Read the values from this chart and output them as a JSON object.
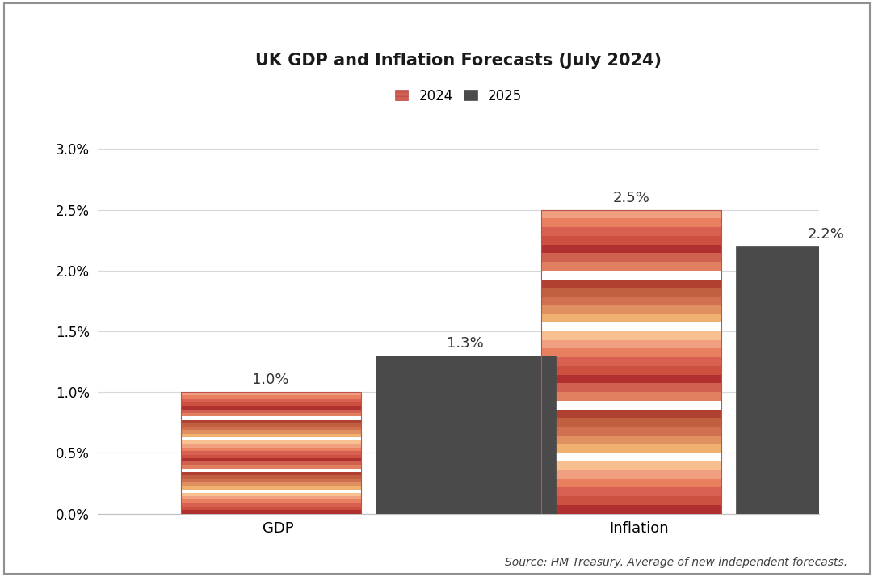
{
  "title": "UK GDP and Inflation Forecasts (July 2024)",
  "categories": [
    "GDP",
    "Inflation"
  ],
  "series": {
    "2024": [
      1.0,
      2.5
    ],
    "2025": [
      1.3,
      2.2
    ]
  },
  "bar_color_2025": "#4A4A4A",
  "stripe_colors": [
    "#C0504D",
    "#E08070",
    "#D4785A",
    "#F0C080",
    "#FFFFFF",
    "#C0504D",
    "#B04040",
    "#E8A080",
    "#FFFFFF",
    "#D06050"
  ],
  "ylim": [
    0,
    0.033
  ],
  "yticks": [
    0.0,
    0.005,
    0.01,
    0.015,
    0.02,
    0.025,
    0.03
  ],
  "ytick_labels": [
    "0.0%",
    "0.5%",
    "1.0%",
    "1.5%",
    "2.0%",
    "2.5%",
    "3.0%"
  ],
  "source_text": "Source: HM Treasury. Average of new independent forecasts.",
  "background_color": "#FFFFFF",
  "grid_color": "#D8D8D8",
  "title_fontsize": 15,
  "label_fontsize": 13,
  "tick_fontsize": 12,
  "value_fontsize": 13,
  "source_fontsize": 10,
  "legend_fontsize": 12,
  "bar_width": 0.25,
  "x_positions": [
    0.25,
    0.75
  ],
  "group_centers": [
    0.25,
    0.75
  ]
}
